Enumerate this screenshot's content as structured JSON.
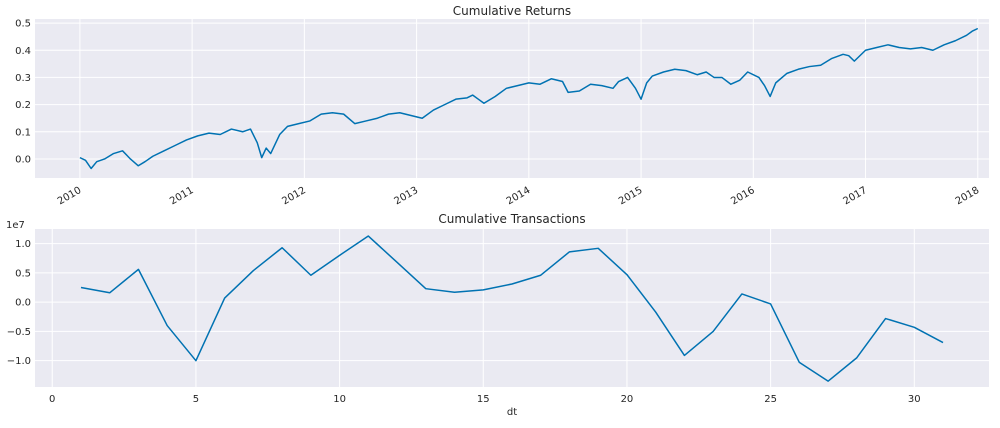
{
  "chart_data": [
    {
      "type": "line",
      "title": "Cumulative Returns",
      "xlabel": "",
      "ylabel": "",
      "x_kind": "date",
      "x_ticks": [
        "2010",
        "2011",
        "2012",
        "2013",
        "2014",
        "2015",
        "2016",
        "2017",
        "2018"
      ],
      "x_tick_values": [
        2010,
        2011,
        2012,
        2013,
        2014,
        2015,
        2016,
        2017,
        2018
      ],
      "xlim": [
        2009.6,
        2018.1
      ],
      "y_ticks": [
        "0.0",
        "0.1",
        "0.2",
        "0.3",
        "0.4",
        "0.5"
      ],
      "y_tick_values": [
        0.0,
        0.1,
        0.2,
        0.3,
        0.4,
        0.5
      ],
      "ylim": [
        -0.07,
        0.515
      ],
      "grid": true,
      "series": [
        {
          "color": "#0072b2",
          "x": [
            2010.0,
            2010.05,
            2010.1,
            2010.15,
            2010.22,
            2010.3,
            2010.38,
            2010.45,
            2010.52,
            2010.58,
            2010.65,
            2010.75,
            2010.85,
            2010.95,
            2011.05,
            2011.15,
            2011.25,
            2011.35,
            2011.45,
            2011.52,
            2011.58,
            2011.62,
            2011.66,
            2011.7,
            2011.78,
            2011.85,
            2011.95,
            2012.05,
            2012.15,
            2012.25,
            2012.35,
            2012.45,
            2012.55,
            2012.65,
            2012.75,
            2012.85,
            2012.95,
            2013.05,
            2013.15,
            2013.25,
            2013.35,
            2013.45,
            2013.5,
            2013.55,
            2013.6,
            2013.7,
            2013.8,
            2013.9,
            2014.0,
            2014.1,
            2014.2,
            2014.3,
            2014.35,
            2014.45,
            2014.55,
            2014.65,
            2014.75,
            2014.8,
            2014.88,
            2014.95,
            2015.0,
            2015.05,
            2015.1,
            2015.2,
            2015.3,
            2015.4,
            2015.5,
            2015.58,
            2015.65,
            2015.72,
            2015.8,
            2015.88,
            2015.95,
            2016.05,
            2016.1,
            2016.15,
            2016.2,
            2016.3,
            2016.4,
            2016.5,
            2016.6,
            2016.7,
            2016.8,
            2016.85,
            2016.9,
            2017.0,
            2017.1,
            2017.2,
            2017.3,
            2017.4,
            2017.5,
            2017.6,
            2017.7,
            2017.8,
            2017.9,
            2017.95,
            2018.0
          ],
          "y": [
            0.005,
            -0.005,
            -0.035,
            -0.01,
            0.0,
            0.02,
            0.03,
            0.0,
            -0.025,
            -0.01,
            0.01,
            0.03,
            0.05,
            0.07,
            0.085,
            0.095,
            0.09,
            0.11,
            0.1,
            0.11,
            0.06,
            0.005,
            0.04,
            0.02,
            0.09,
            0.12,
            0.13,
            0.14,
            0.165,
            0.17,
            0.165,
            0.13,
            0.14,
            0.15,
            0.165,
            0.17,
            0.16,
            0.15,
            0.18,
            0.2,
            0.22,
            0.225,
            0.235,
            0.22,
            0.205,
            0.23,
            0.26,
            0.27,
            0.28,
            0.275,
            0.295,
            0.285,
            0.245,
            0.25,
            0.275,
            0.27,
            0.26,
            0.285,
            0.3,
            0.26,
            0.22,
            0.28,
            0.305,
            0.32,
            0.33,
            0.325,
            0.31,
            0.32,
            0.3,
            0.3,
            0.275,
            0.29,
            0.32,
            0.3,
            0.27,
            0.23,
            0.28,
            0.315,
            0.33,
            0.34,
            0.345,
            0.37,
            0.385,
            0.38,
            0.36,
            0.4,
            0.41,
            0.42,
            0.41,
            0.405,
            0.41,
            0.4,
            0.42,
            0.435,
            0.455,
            0.47,
            0.48
          ]
        }
      ]
    },
    {
      "type": "line",
      "title": "Cumulative Transactions",
      "xlabel": "dt",
      "ylabel": "",
      "y_offset_label": "1e7",
      "x_ticks": [
        "0",
        "5",
        "10",
        "15",
        "20",
        "25",
        "30"
      ],
      "x_tick_values": [
        0,
        5,
        10,
        15,
        20,
        25,
        30
      ],
      "xlim": [
        -0.6,
        32.6
      ],
      "y_ticks": [
        "−1.0",
        "−0.5",
        "0.0",
        "0.5",
        "1.0"
      ],
      "y_tick_values": [
        -1.0,
        -0.5,
        0.0,
        0.5,
        1.0
      ],
      "ylim": [
        -1.45,
        1.25
      ],
      "grid": true,
      "series": [
        {
          "color": "#0072b2",
          "x": [
            1,
            2,
            3,
            4,
            5,
            6,
            7,
            8,
            9,
            10,
            11,
            12,
            13,
            14,
            15,
            16,
            17,
            18,
            19,
            20,
            21,
            22,
            23,
            24,
            25,
            26,
            27,
            28,
            29,
            30,
            31
          ],
          "y": [
            0.25,
            0.16,
            0.56,
            -0.4,
            -1.0,
            0.07,
            0.54,
            0.93,
            0.46,
            0.8,
            1.13,
            0.68,
            0.23,
            0.17,
            0.21,
            0.31,
            0.46,
            0.86,
            0.92,
            0.47,
            -0.17,
            -0.91,
            -0.5,
            0.14,
            -0.03,
            -1.03,
            -1.35,
            -0.95,
            -0.28,
            -0.43,
            -0.69
          ]
        }
      ]
    }
  ]
}
